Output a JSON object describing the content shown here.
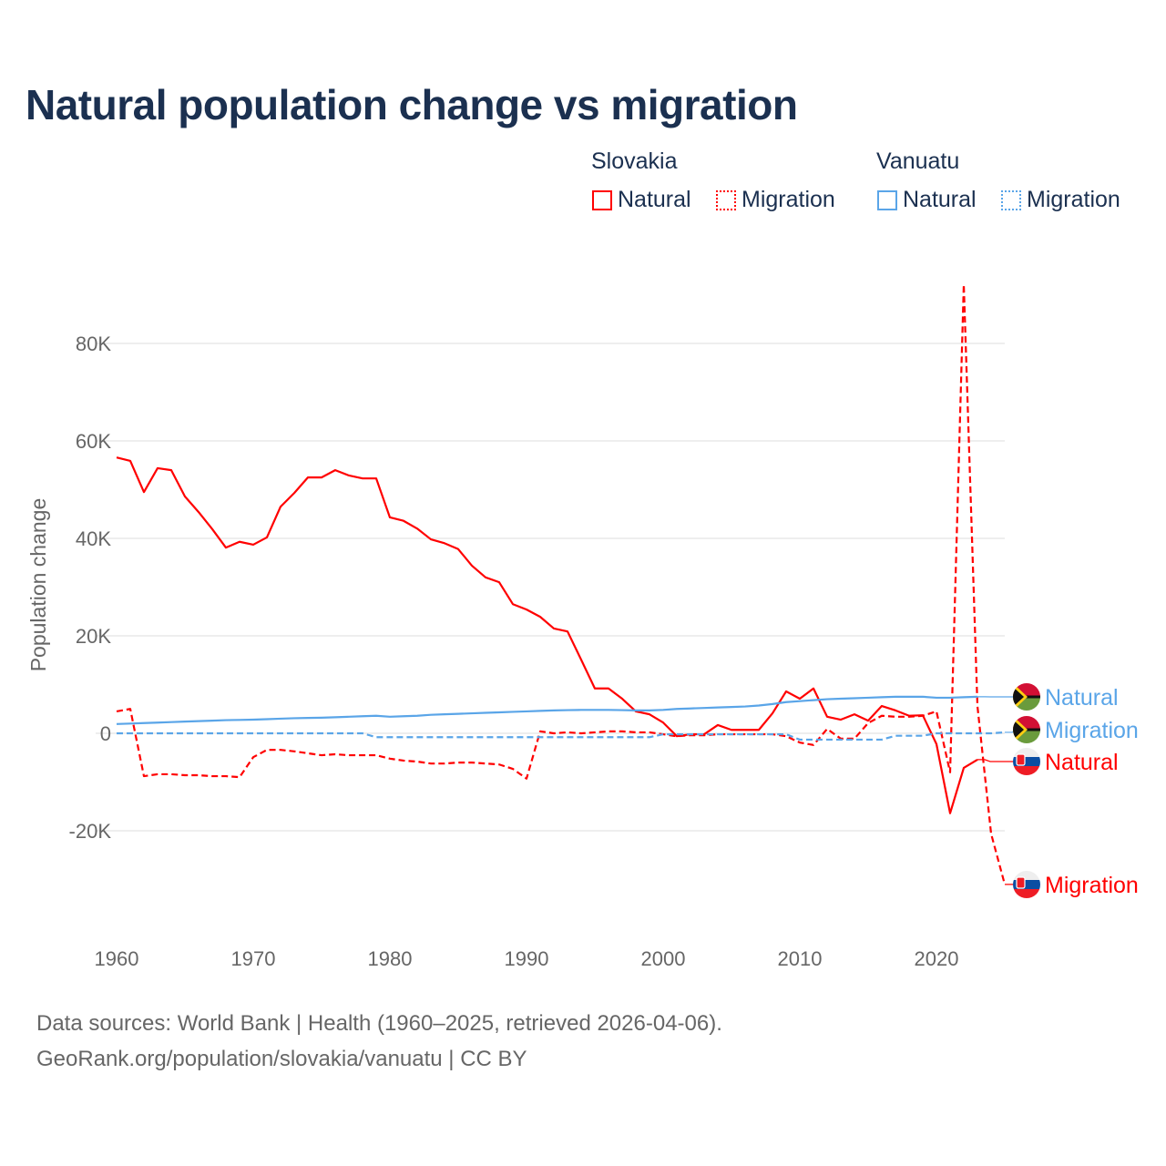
{
  "title": "Natural population change vs migration",
  "legend": {
    "groups": [
      {
        "name": "Slovakia",
        "items": [
          "Natural",
          "Migration"
        ]
      },
      {
        "name": "Vanuatu",
        "items": [
          "Natural",
          "Migration"
        ]
      }
    ]
  },
  "footer": {
    "line1": "Data sources: World Bank | Health (1960–2025, retrieved 2026-04-06).",
    "line2": "GeoRank.org/population/slovakia/vanuatu | CC BY"
  },
  "chart_data": {
    "type": "line",
    "title": "Natural population change vs migration",
    "xlabel": "",
    "ylabel": "Population change",
    "xlim": [
      1960,
      2025
    ],
    "ylim": [
      -35000,
      93000
    ],
    "xticks": [
      1960,
      1970,
      1980,
      1990,
      2000,
      2010,
      2020
    ],
    "xtick_labels": [
      "1960",
      "1970",
      "1980",
      "1990",
      "2000",
      "2010",
      "2020"
    ],
    "yticks": [
      -20000,
      0,
      20000,
      40000,
      60000,
      80000
    ],
    "ytick_labels": [
      "-20K",
      "0",
      "20K",
      "40K",
      "60K",
      "80K"
    ],
    "grid": true,
    "series": [
      {
        "name": "Natural",
        "country": "Slovakia",
        "color": "#ff0000",
        "dash": "solid",
        "start": 1960,
        "values": [
          56600,
          55900,
          49500,
          54400,
          54000,
          48600,
          45400,
          41900,
          38100,
          39300,
          38700,
          40200,
          46500,
          49300,
          52500,
          52500,
          54000,
          52900,
          52300,
          52300,
          44300,
          43600,
          42000,
          39800,
          39000,
          37800,
          34400,
          32000,
          31000,
          26500,
          25400,
          23900,
          21500,
          20900,
          15100,
          9200,
          9200,
          7100,
          4500,
          3900,
          2200,
          -600,
          -200,
          -200,
          1700,
          700,
          700,
          700,
          4100,
          8600,
          7100,
          9200,
          3400,
          2800,
          3900,
          2600,
          5600,
          4700,
          3600,
          3700,
          -2200,
          -16400,
          -7100,
          -5400
        ]
      },
      {
        "name": "Migration",
        "country": "Slovakia",
        "color": "#ff0000",
        "dash": "dashed",
        "start": 1960,
        "values": [
          4500,
          5000,
          -8800,
          -8400,
          -8400,
          -8600,
          -8600,
          -8800,
          -8800,
          -9000,
          -4900,
          -3400,
          -3400,
          -3700,
          -4100,
          -4500,
          -4300,
          -4500,
          -4500,
          -4500,
          -5200,
          -5600,
          -5800,
          -6200,
          -6200,
          -6000,
          -6000,
          -6200,
          -6400,
          -7300,
          -9300,
          400,
          0,
          200,
          0,
          200,
          400,
          400,
          200,
          200,
          -200,
          -600,
          -400,
          -400,
          -200,
          -200,
          -200,
          -200,
          -200,
          -600,
          -1900,
          -2400,
          900,
          -1100,
          -1100,
          2100,
          3600,
          3400,
          3400,
          3600,
          4500,
          -8000,
          92100,
          5600,
          -20600,
          -31000
        ]
      },
      {
        "name": "Natural",
        "country": "Vanuatu",
        "color": "#5aa5e8",
        "dash": "solid",
        "start": 1960,
        "values": [
          1900,
          2000,
          2100,
          2200,
          2300,
          2400,
          2500,
          2600,
          2700,
          2750,
          2800,
          2900,
          3000,
          3100,
          3150,
          3200,
          3300,
          3400,
          3500,
          3600,
          3400,
          3500,
          3600,
          3800,
          3900,
          4000,
          4100,
          4200,
          4300,
          4400,
          4500,
          4600,
          4700,
          4750,
          4800,
          4800,
          4800,
          4750,
          4700,
          4700,
          4800,
          5000,
          5100,
          5200,
          5300,
          5400,
          5500,
          5700,
          6000,
          6400,
          6600,
          6800,
          7000,
          7100,
          7200,
          7300,
          7400,
          7500,
          7500,
          7500,
          7300,
          7300,
          7400,
          7500
        ]
      },
      {
        "name": "Migration",
        "country": "Vanuatu",
        "color": "#5aa5e8",
        "dash": "dotted",
        "start": 1960,
        "values": [
          0,
          0,
          0,
          0,
          0,
          0,
          0,
          0,
          0,
          0,
          0,
          0,
          0,
          0,
          0,
          0,
          0,
          0,
          0,
          -800,
          -800,
          -800,
          -800,
          -800,
          -800,
          -800,
          -800,
          -800,
          -800,
          -800,
          -800,
          -800,
          -800,
          -800,
          -800,
          -800,
          -800,
          -800,
          -800,
          -800,
          -200,
          -200,
          -200,
          -200,
          -200,
          -200,
          -200,
          -200,
          -200,
          -200,
          -1300,
          -1300,
          -1300,
          -1300,
          -1300,
          -1300,
          -1300,
          -500,
          -500,
          -500,
          0,
          0,
          0,
          0,
          0,
          200
        ]
      }
    ],
    "end_labels": [
      {
        "country": "Vanuatu",
        "text": "Natural"
      },
      {
        "country": "Vanuatu",
        "text": "Migration"
      },
      {
        "country": "Slovakia",
        "text": "Natural"
      },
      {
        "country": "Slovakia",
        "text": "Migration"
      }
    ]
  }
}
